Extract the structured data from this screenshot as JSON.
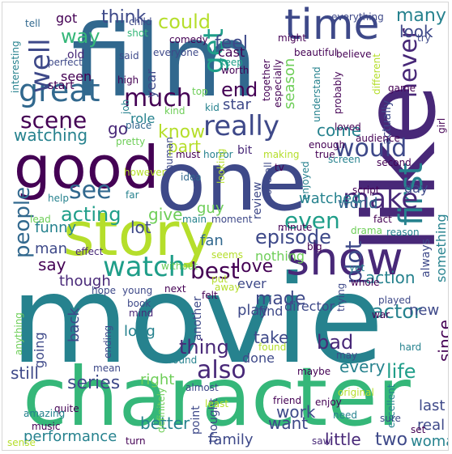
{
  "palette": [
    "#440154",
    "#482878",
    "#3e4989",
    "#31688e",
    "#26828e",
    "#1f9e89",
    "#35b779",
    "#6ece58",
    "#b5de2b",
    "#fde725"
  ],
  "words": [
    {
      "text": "movie",
      "color": "#26828e"
    },
    {
      "text": "film",
      "color": "#31688e"
    },
    {
      "text": "character",
      "color": "#35b779"
    },
    {
      "text": "one",
      "color": "#3e4989"
    },
    {
      "text": "like",
      "color": "#482878"
    },
    {
      "text": "good",
      "color": "#440154"
    },
    {
      "text": "story",
      "color": "#b5de2b"
    },
    {
      "text": "show",
      "color": "#482878"
    },
    {
      "text": "time",
      "color": "#3e4989"
    },
    {
      "text": "would",
      "color": "#3e4989"
    },
    {
      "text": "really",
      "color": "#3e4989"
    },
    {
      "text": "great",
      "color": "#31688e"
    },
    {
      "text": "first",
      "color": "#26828e"
    },
    {
      "text": "make",
      "color": "#482878"
    },
    {
      "text": "never",
      "color": "#482878"
    },
    {
      "text": "watch",
      "color": "#1f9e89"
    },
    {
      "text": "well",
      "color": "#3e4989"
    },
    {
      "text": "see",
      "color": "#31688e"
    },
    {
      "text": "much",
      "color": "#440154"
    },
    {
      "text": "scene",
      "color": "#440154"
    },
    {
      "text": "get",
      "color": "#1f9e89"
    },
    {
      "text": "even",
      "color": "#1f9e89"
    },
    {
      "text": "people",
      "color": "#31688e"
    },
    {
      "text": "also",
      "color": "#482878"
    },
    {
      "text": "best",
      "color": "#440154"
    },
    {
      "text": "could",
      "color": "#b5de2b"
    },
    {
      "text": "acting",
      "color": "#1f9e89"
    },
    {
      "text": "episode",
      "color": "#3e4989"
    },
    {
      "text": "love",
      "color": "#440154"
    },
    {
      "text": "life",
      "color": "#1f9e89"
    },
    {
      "text": "way",
      "color": "#35b779"
    },
    {
      "text": "think",
      "color": "#3e4989"
    },
    {
      "text": "feel",
      "color": "#3e4989"
    },
    {
      "text": "end",
      "color": "#440154"
    },
    {
      "text": "go",
      "color": "#482878"
    },
    {
      "text": "know",
      "color": "#b5de2b"
    },
    {
      "text": "plot",
      "color": "#3e4989"
    },
    {
      "text": "actor",
      "color": "#26828e"
    },
    {
      "text": "bad",
      "color": "#482878"
    },
    {
      "text": "made",
      "color": "#3e4989"
    },
    {
      "text": "take",
      "color": "#3e4989"
    },
    {
      "text": "many",
      "color": "#26828e"
    },
    {
      "text": "look",
      "color": "#3e4989"
    },
    {
      "text": "thing",
      "color": "#482878"
    },
    {
      "text": "series",
      "color": "#3e4989"
    },
    {
      "text": "watching",
      "color": "#26828e"
    },
    {
      "text": "say",
      "color": "#440154"
    },
    {
      "text": "lot",
      "color": "#3e4989"
    },
    {
      "text": "give",
      "color": "#6ece58"
    },
    {
      "text": "part",
      "color": "#b5de2b"
    },
    {
      "text": "come",
      "color": "#26828e"
    },
    {
      "text": "since",
      "color": "#440154"
    },
    {
      "text": "two",
      "color": "#3e4989"
    },
    {
      "text": "little",
      "color": "#482878"
    },
    {
      "text": "every",
      "color": "#26828e"
    },
    {
      "text": "action",
      "color": "#26828e"
    },
    {
      "text": "still",
      "color": "#3e4989"
    },
    {
      "text": "want",
      "color": "#3e4989"
    },
    {
      "text": "work",
      "color": "#3e4989"
    },
    {
      "text": "better",
      "color": "#26828e"
    },
    {
      "text": "performance",
      "color": "#26828e"
    },
    {
      "text": "real",
      "color": "#3e4989"
    },
    {
      "text": "last",
      "color": "#3e4989"
    },
    {
      "text": "woman",
      "color": "#26828e"
    },
    {
      "text": "family",
      "color": "#3e4989"
    },
    {
      "text": "new",
      "color": "#3e4989"
    },
    {
      "text": "right",
      "color": "#6ece58"
    },
    {
      "text": "guy",
      "color": "#6ece58"
    },
    {
      "text": "fan",
      "color": "#31688e"
    },
    {
      "text": "man",
      "color": "#3e4989"
    },
    {
      "text": "funny",
      "color": "#26828e"
    },
    {
      "text": "though",
      "color": "#482878"
    },
    {
      "text": "back",
      "color": "#3e4989"
    },
    {
      "text": "long",
      "color": "#26828e"
    },
    {
      "text": "going",
      "color": "#3e4989"
    },
    {
      "text": "director",
      "color": "#3e4989"
    },
    {
      "text": "find",
      "color": "#3e4989"
    },
    {
      "text": "play",
      "color": "#3e4989"
    },
    {
      "text": "ever",
      "color": "#3e4989"
    },
    {
      "text": "nothing",
      "color": "#6ece58"
    },
    {
      "text": "done",
      "color": "#3e4989"
    },
    {
      "text": "watched",
      "color": "#26828e"
    },
    {
      "text": "world",
      "color": "#31688e"
    },
    {
      "text": "day",
      "color": "#3e4989"
    },
    {
      "text": "something",
      "color": "#26828e"
    },
    {
      "text": "always",
      "color": "#3e4989"
    },
    {
      "text": "star",
      "color": "#3e4989"
    },
    {
      "text": "bit",
      "color": "#482878"
    },
    {
      "text": "role",
      "color": "#26828e"
    },
    {
      "text": "seen",
      "color": "#440154"
    },
    {
      "text": "start",
      "color": "#440154"
    },
    {
      "text": "cast",
      "color": "#440154"
    },
    {
      "text": "season",
      "color": "#6ece58"
    },
    {
      "text": "got",
      "color": "#440154"
    },
    {
      "text": "old",
      "color": "#482878"
    },
    {
      "text": "year",
      "color": "#3e4989"
    },
    {
      "text": "actually",
      "color": "#3e4989"
    },
    {
      "text": "review",
      "color": "#3e4989"
    },
    {
      "text": "thought",
      "color": "#3e4989"
    },
    {
      "text": "point",
      "color": "#3e4989"
    },
    {
      "text": "another",
      "color": "#3e4989"
    },
    {
      "text": "interesting",
      "color": "#26828e"
    },
    {
      "text": "tell",
      "color": "#31688e"
    },
    {
      "text": "child",
      "color": "#3e4989"
    },
    {
      "text": "everything",
      "color": "#3e4989"
    },
    {
      "text": "might",
      "color": "#440154"
    },
    {
      "text": "shot",
      "color": "#35b779"
    },
    {
      "text": "try",
      "color": "#3e4989"
    },
    {
      "text": "perfect",
      "color": "#3e4989"
    },
    {
      "text": "said",
      "color": "#3e4989"
    },
    {
      "text": "everyone",
      "color": "#3e4989"
    },
    {
      "text": "comedy",
      "color": "#440154"
    },
    {
      "text": "keep",
      "color": "#1f9e89"
    },
    {
      "text": "worth",
      "color": "#440154"
    },
    {
      "text": "beautiful",
      "color": "#440154"
    },
    {
      "text": "believe",
      "color": "#440154"
    },
    {
      "text": "high",
      "color": "#440154"
    },
    {
      "text": "together",
      "color": "#440154"
    },
    {
      "text": "especially",
      "color": "#440154"
    },
    {
      "text": "probably",
      "color": "#440154"
    },
    {
      "text": "different",
      "color": "#b5de2b"
    },
    {
      "text": "game",
      "color": "#440154"
    },
    {
      "text": "top",
      "color": "#6ece58"
    },
    {
      "text": "kid",
      "color": "#26828e"
    },
    {
      "text": "kind",
      "color": "#6ece58"
    },
    {
      "text": "job",
      "color": "#26828e"
    },
    {
      "text": "place",
      "color": "#31688e"
    },
    {
      "text": "understand",
      "color": "#26828e"
    },
    {
      "text": "loved",
      "color": "#440154"
    },
    {
      "text": "audience",
      "color": "#440154"
    },
    {
      "text": "girl",
      "color": "#440154"
    },
    {
      "text": "pretty",
      "color": "#6ece58"
    },
    {
      "text": "human",
      "color": "#3e4989"
    },
    {
      "text": "must",
      "color": "#440154"
    },
    {
      "text": "horror",
      "color": "#26828e"
    },
    {
      "text": "making",
      "color": "#b5de2b"
    },
    {
      "text": "true",
      "color": "#440154"
    },
    {
      "text": "enough",
      "color": "#440154"
    },
    {
      "text": "screen",
      "color": "#26828e"
    },
    {
      "text": "second",
      "color": "#440154"
    },
    {
      "text": "however",
      "color": "#b5de2b"
    },
    {
      "text": "idea",
      "color": "#31688e"
    },
    {
      "text": "looking",
      "color": "#b5de2b"
    },
    {
      "text": "tv",
      "color": "#440154"
    },
    {
      "text": "enjoyed",
      "color": "#26828e"
    },
    {
      "text": "script",
      "color": "#440154"
    },
    {
      "text": "far",
      "color": "#26828e"
    },
    {
      "text": "help",
      "color": "#26828e"
    },
    {
      "text": "lead",
      "color": "#6ece58"
    },
    {
      "text": "main",
      "color": "#26828e"
    },
    {
      "text": "overall",
      "color": "#3e4989"
    },
    {
      "text": "moment",
      "color": "#3e4989"
    },
    {
      "text": "minute",
      "color": "#440154"
    },
    {
      "text": "fact",
      "color": "#440154"
    },
    {
      "text": "drama",
      "color": "#6ece58"
    },
    {
      "text": "reason",
      "color": "#26828e"
    },
    {
      "text": "big",
      "color": "#440154"
    },
    {
      "text": "yet",
      "color": "#26828e"
    },
    {
      "text": "effect",
      "color": "#482878"
    },
    {
      "text": "without",
      "color": "#6ece58"
    },
    {
      "text": "seems",
      "color": "#b5de2b"
    },
    {
      "text": "put",
      "color": "#b5de2b"
    },
    {
      "text": "away",
      "color": "#b5de2b"
    },
    {
      "text": "whole",
      "color": "#440154"
    },
    {
      "text": "hope",
      "color": "#3e4989"
    },
    {
      "text": "next",
      "color": "#440154"
    },
    {
      "text": "felt",
      "color": "#440154"
    },
    {
      "text": "trying",
      "color": "#3e4989"
    },
    {
      "text": "played",
      "color": "#3e4989"
    },
    {
      "text": "war",
      "color": "#440154"
    },
    {
      "text": "young",
      "color": "#3e4989"
    },
    {
      "text": "book",
      "color": "#3e4989"
    },
    {
      "text": "mind",
      "color": "#482878"
    },
    {
      "text": "ending",
      "color": "#3e4989"
    },
    {
      "text": "anything",
      "color": "#6ece58"
    },
    {
      "text": "around",
      "color": "#26828e"
    },
    {
      "text": "found",
      "color": "#b5de2b"
    },
    {
      "text": "hard",
      "color": "#26828e"
    },
    {
      "text": "may",
      "color": "#3e4989"
    },
    {
      "text": "mean",
      "color": "#3e4989"
    },
    {
      "text": "almost",
      "color": "#3e4989"
    },
    {
      "text": "maybe",
      "color": "#440154"
    },
    {
      "text": "original",
      "color": "#b5de2b"
    },
    {
      "text": "quite",
      "color": "#440154"
    },
    {
      "text": "definitely",
      "color": "#6ece58"
    },
    {
      "text": "least",
      "color": "#b5de2b"
    },
    {
      "text": "friend",
      "color": "#440154"
    },
    {
      "text": "enjoy",
      "color": "#440154"
    },
    {
      "text": "excellent",
      "color": "#26828e"
    },
    {
      "text": "amazing",
      "color": "#26828e"
    },
    {
      "text": "music",
      "color": "#440154"
    },
    {
      "text": "need",
      "color": "#26828e"
    },
    {
      "text": "sure",
      "color": "#3e4989"
    },
    {
      "text": "set",
      "color": "#440154"
    },
    {
      "text": "sense",
      "color": "#b5de2b"
    },
    {
      "text": "turn",
      "color": "#440154"
    },
    {
      "text": "saw",
      "color": "#482878"
    }
  ]
}
